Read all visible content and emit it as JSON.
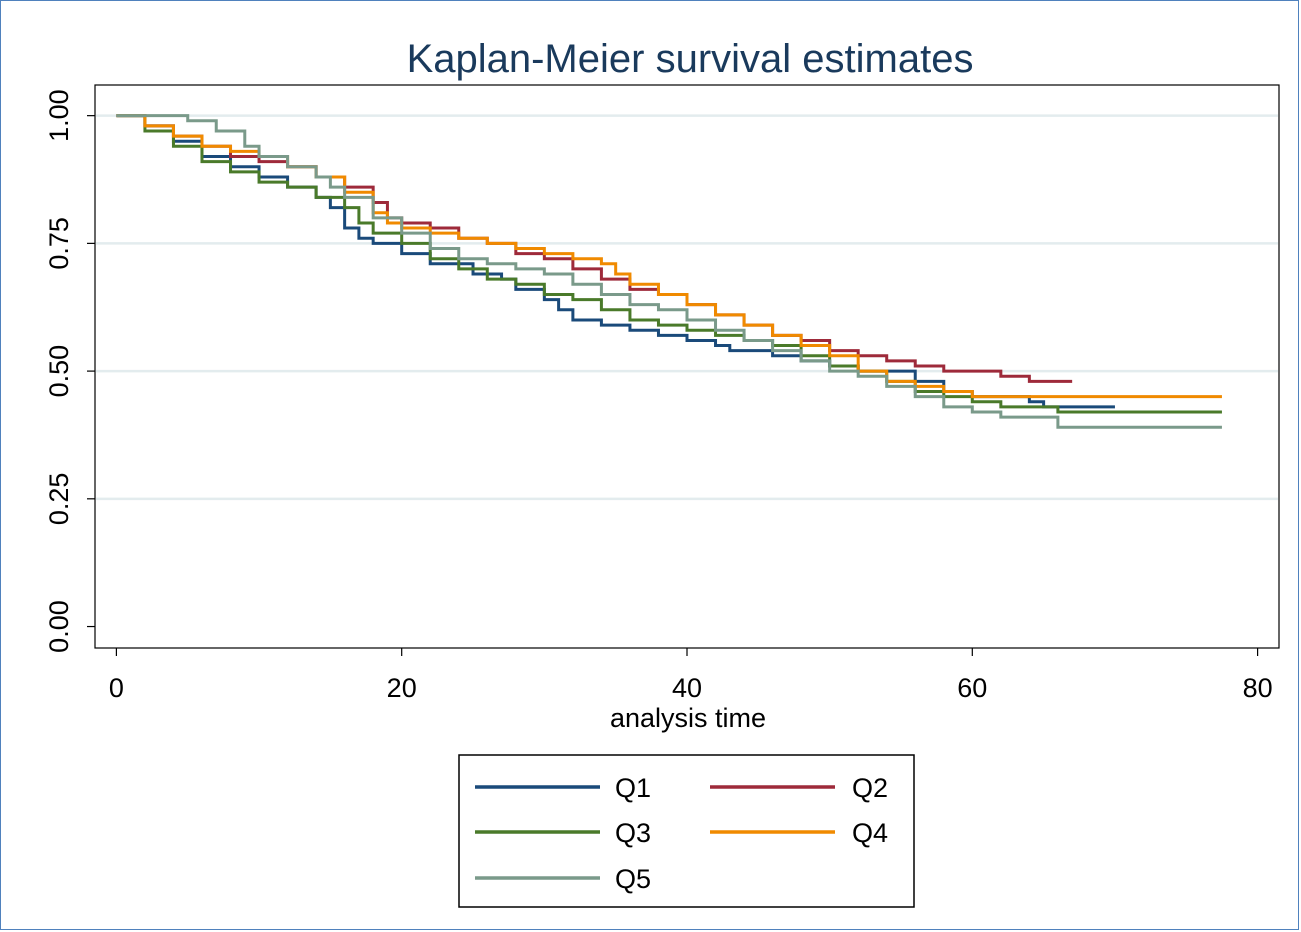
{
  "chart_data": {
    "type": "line",
    "title": "Kaplan-Meier survival estimates",
    "xlabel": "analysis time",
    "ylabel": "",
    "xlim": [
      -1.5,
      81.5
    ],
    "ylim": [
      -0.042,
      1.06
    ],
    "x_ticks": [
      0,
      20,
      40,
      60,
      80
    ],
    "x_tick_labels": [
      "0",
      "20",
      "40",
      "60",
      "80"
    ],
    "y_ticks": [
      0,
      0.25,
      0.5,
      0.75,
      1.0
    ],
    "y_tick_labels": [
      "0.00",
      "0.25",
      "0.50",
      "0.75",
      "1.00"
    ],
    "grid": true,
    "legend_position": "bottom",
    "step": true,
    "series": [
      {
        "name": "Q1",
        "color": "#1a4a7a",
        "x": [
          0,
          2,
          4,
          6,
          8,
          10,
          12,
          14,
          15,
          16,
          17,
          18,
          20,
          22,
          25,
          27,
          28,
          30,
          31,
          32,
          34,
          36,
          38,
          40,
          42,
          43,
          46,
          48,
          50,
          52,
          54,
          56,
          58,
          60,
          62,
          64,
          65,
          70
        ],
        "y": [
          1.0,
          0.98,
          0.95,
          0.92,
          0.9,
          0.88,
          0.86,
          0.84,
          0.82,
          0.78,
          0.76,
          0.75,
          0.73,
          0.71,
          0.69,
          0.68,
          0.66,
          0.64,
          0.62,
          0.6,
          0.59,
          0.58,
          0.57,
          0.56,
          0.55,
          0.54,
          0.53,
          0.52,
          0.51,
          0.5,
          0.5,
          0.48,
          0.46,
          0.45,
          0.45,
          0.44,
          0.43,
          0.43
        ]
      },
      {
        "name": "Q2",
        "color": "#9e2a3a",
        "x": [
          0,
          2,
          4,
          6,
          8,
          10,
          12,
          14,
          16,
          18,
          19,
          20,
          22,
          24,
          26,
          28,
          30,
          32,
          34,
          36,
          38,
          40,
          42,
          44,
          46,
          48,
          50,
          52,
          54,
          56,
          58,
          60,
          62,
          64,
          66,
          67
        ],
        "y": [
          1.0,
          0.98,
          0.96,
          0.94,
          0.92,
          0.91,
          0.9,
          0.88,
          0.86,
          0.83,
          0.8,
          0.79,
          0.78,
          0.76,
          0.75,
          0.73,
          0.72,
          0.7,
          0.68,
          0.66,
          0.65,
          0.63,
          0.61,
          0.59,
          0.57,
          0.56,
          0.54,
          0.53,
          0.52,
          0.51,
          0.5,
          0.5,
          0.49,
          0.48,
          0.48,
          0.48
        ]
      },
      {
        "name": "Q3",
        "color": "#4a7a2a",
        "x": [
          0,
          2,
          4,
          6,
          8,
          10,
          12,
          14,
          16,
          17,
          18,
          20,
          22,
          24,
          26,
          28,
          30,
          32,
          34,
          36,
          38,
          40,
          42,
          44,
          46,
          48,
          50,
          52,
          54,
          56,
          58,
          60,
          62,
          64,
          66,
          77.5
        ],
        "y": [
          1.0,
          0.97,
          0.94,
          0.91,
          0.89,
          0.87,
          0.86,
          0.84,
          0.82,
          0.79,
          0.77,
          0.75,
          0.72,
          0.7,
          0.68,
          0.67,
          0.65,
          0.64,
          0.62,
          0.6,
          0.59,
          0.58,
          0.57,
          0.56,
          0.55,
          0.53,
          0.51,
          0.5,
          0.48,
          0.46,
          0.45,
          0.44,
          0.43,
          0.43,
          0.42,
          0.42
        ]
      },
      {
        "name": "Q4",
        "color": "#f08a00",
        "x": [
          0,
          2,
          4,
          6,
          8,
          10,
          12,
          14,
          16,
          18,
          19,
          20,
          22,
          24,
          26,
          28,
          30,
          32,
          34,
          35,
          36,
          38,
          40,
          42,
          44,
          46,
          48,
          50,
          52,
          54,
          56,
          58,
          60,
          62,
          64,
          77.5
        ],
        "y": [
          1.0,
          0.98,
          0.96,
          0.94,
          0.93,
          0.92,
          0.9,
          0.88,
          0.85,
          0.81,
          0.79,
          0.78,
          0.77,
          0.76,
          0.75,
          0.74,
          0.73,
          0.72,
          0.71,
          0.69,
          0.67,
          0.65,
          0.63,
          0.61,
          0.59,
          0.57,
          0.55,
          0.53,
          0.5,
          0.48,
          0.47,
          0.46,
          0.45,
          0.45,
          0.45,
          0.45
        ]
      },
      {
        "name": "Q5",
        "color": "#7a9a8a",
        "x": [
          0,
          3,
          5,
          7,
          9,
          10,
          12,
          14,
          15,
          16,
          18,
          20,
          22,
          24,
          26,
          28,
          30,
          32,
          34,
          36,
          38,
          40,
          42,
          44,
          46,
          48,
          50,
          52,
          54,
          56,
          58,
          60,
          62,
          64,
          66,
          77.5
        ],
        "y": [
          1.0,
          1.0,
          0.99,
          0.97,
          0.94,
          0.92,
          0.9,
          0.88,
          0.86,
          0.84,
          0.8,
          0.77,
          0.74,
          0.72,
          0.71,
          0.7,
          0.69,
          0.67,
          0.65,
          0.63,
          0.62,
          0.6,
          0.58,
          0.56,
          0.54,
          0.52,
          0.5,
          0.49,
          0.47,
          0.45,
          0.43,
          0.42,
          0.41,
          0.41,
          0.39,
          0.39
        ]
      }
    ]
  }
}
